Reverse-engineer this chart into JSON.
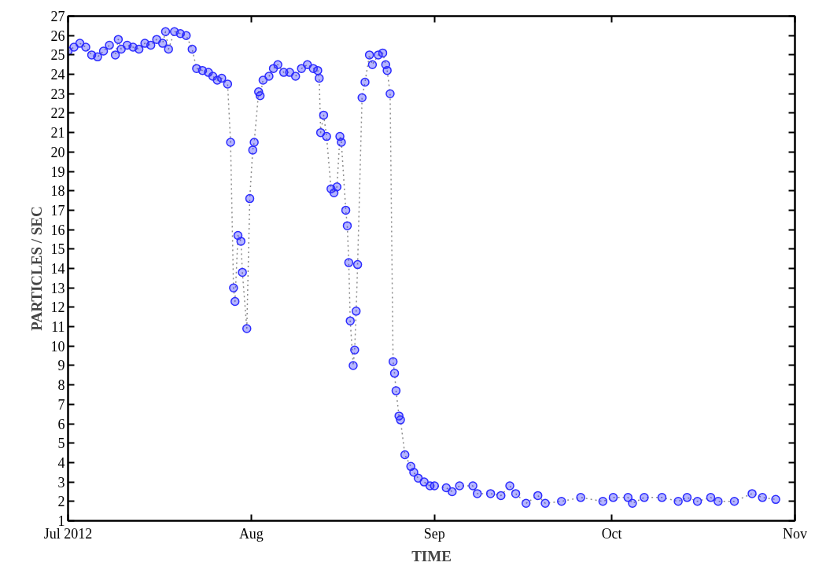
{
  "chart_data": {
    "type": "line",
    "xlabel": "TIME",
    "ylabel": "PARTICLES / SEC",
    "xlim": [
      "2012-07-01",
      "2012-11-01"
    ],
    "xticks": [
      {
        "value": "2012-07-01",
        "label": "Jul 2012"
      },
      {
        "value": "2012-08-01",
        "label": "Aug"
      },
      {
        "value": "2012-09-01",
        "label": "Sep"
      },
      {
        "value": "2012-10-01",
        "label": "Oct"
      },
      {
        "value": "2012-11-01",
        "label": "Nov"
      }
    ],
    "ylim": [
      1,
      27
    ],
    "yticks": [
      1,
      2,
      3,
      4,
      5,
      6,
      7,
      8,
      9,
      10,
      11,
      12,
      13,
      14,
      15,
      16,
      17,
      18,
      19,
      20,
      21,
      22,
      23,
      24,
      25,
      26,
      27
    ],
    "grid": false,
    "marker": "circle",
    "line_style": "dotted",
    "series": [
      {
        "color": "#2b2bff",
        "x": [
          "2012-07-01T00:00",
          "2012-07-02T00:00",
          "2012-07-03T00:00",
          "2012-07-04T00:00",
          "2012-07-05T00:00",
          "2012-07-06T00:00",
          "2012-07-07T00:00",
          "2012-07-08T00:00",
          "2012-07-09T00:00",
          "2012-07-09T12:00",
          "2012-07-10T00:00",
          "2012-07-11T00:00",
          "2012-07-12T00:00",
          "2012-07-13T00:00",
          "2012-07-14T00:00",
          "2012-07-15T00:00",
          "2012-07-16T00:00",
          "2012-07-17T00:00",
          "2012-07-17T12:00",
          "2012-07-18T00:00",
          "2012-07-19T00:00",
          "2012-07-20T00:00",
          "2012-07-21T00:00",
          "2012-07-22T00:00",
          "2012-07-22T18:00",
          "2012-07-23T18:00",
          "2012-07-24T18:00",
          "2012-07-25T12:00",
          "2012-07-26T06:00",
          "2012-07-27T00:00",
          "2012-07-28T00:00",
          "2012-07-28T12:00",
          "2012-07-29T00:00",
          "2012-07-29T06:00",
          "2012-07-29T18:00",
          "2012-07-30T06:00",
          "2012-07-30T12:00",
          "2012-07-31T06:00",
          "2012-07-31T18:00",
          "2012-08-01T06:00",
          "2012-08-01T12:00",
          "2012-08-02T06:00",
          "2012-08-02T12:00",
          "2012-08-03T00:00",
          "2012-08-04T00:00",
          "2012-08-04T18:00",
          "2012-08-05T12:00",
          "2012-08-06T12:00",
          "2012-08-07T12:00",
          "2012-08-08T12:00",
          "2012-08-09T12:00",
          "2012-08-10T12:00",
          "2012-08-11T12:00",
          "2012-08-12T06:00",
          "2012-08-12T12:00",
          "2012-08-12T18:00",
          "2012-08-13T06:00",
          "2012-08-13T18:00",
          "2012-08-14T12:00",
          "2012-08-15T00:00",
          "2012-08-15T12:00",
          "2012-08-16T00:00",
          "2012-08-16T06:00",
          "2012-08-17T00:00",
          "2012-08-17T06:00",
          "2012-08-17T12:00",
          "2012-08-17T18:00",
          "2012-08-18T06:00",
          "2012-08-18T12:00",
          "2012-08-18T18:00",
          "2012-08-19T00:00",
          "2012-08-19T18:00",
          "2012-08-20T06:00",
          "2012-08-21T00:00",
          "2012-08-21T12:00",
          "2012-08-22T12:00",
          "2012-08-23T06:00",
          "2012-08-23T18:00",
          "2012-08-24T00:00",
          "2012-08-24T12:00",
          "2012-08-25T00:00",
          "2012-08-25T06:00",
          "2012-08-25T12:00",
          "2012-08-26T00:00",
          "2012-08-26T06:00",
          "2012-08-27T00:00",
          "2012-08-28T00:00",
          "2012-08-28T12:00",
          "2012-08-29T06:00",
          "2012-08-30T06:00",
          "2012-08-31T06:00",
          "2012-09-01T00:00",
          "2012-09-03T00:00",
          "2012-09-04T00:00",
          "2012-09-05T06:00",
          "2012-09-07T12:00",
          "2012-09-08T06:00",
          "2012-09-10T12:00",
          "2012-09-12T06:00",
          "2012-09-13T18:00",
          "2012-09-14T18:00",
          "2012-09-16T12:00",
          "2012-09-18T12:00",
          "2012-09-19T18:00",
          "2012-09-22T12:00",
          "2012-09-25T18:00",
          "2012-09-29T12:00",
          "2012-10-01T06:00",
          "2012-10-03T18:00",
          "2012-10-04T12:00",
          "2012-10-06T12:00",
          "2012-10-09T12:00",
          "2012-10-12T06:00",
          "2012-10-13T18:00",
          "2012-10-15T12:00",
          "2012-10-17T18:00",
          "2012-10-19T00:00",
          "2012-10-21T18:00",
          "2012-10-24T18:00",
          "2012-10-26T12:00",
          "2012-10-28T18:00"
        ],
        "values": [
          25.2,
          25.4,
          25.6,
          25.4,
          25.0,
          24.9,
          25.2,
          25.5,
          25.0,
          25.8,
          25.3,
          25.5,
          25.4,
          25.3,
          25.6,
          25.5,
          25.8,
          25.6,
          26.2,
          25.3,
          26.2,
          26.1,
          26.0,
          25.3,
          24.3,
          24.2,
          24.1,
          23.9,
          23.7,
          23.8,
          23.5,
          20.5,
          13.0,
          12.3,
          15.7,
          15.4,
          13.8,
          10.9,
          17.6,
          20.1,
          20.5,
          23.1,
          22.9,
          23.7,
          23.9,
          24.3,
          24.5,
          24.1,
          24.1,
          23.9,
          24.3,
          24.5,
          24.3,
          24.2,
          23.8,
          21.0,
          21.9,
          20.8,
          18.1,
          17.9,
          18.2,
          20.8,
          20.5,
          17.0,
          16.2,
          14.3,
          11.3,
          9.0,
          9.8,
          11.8,
          14.2,
          22.8,
          23.6,
          25.0,
          24.5,
          25.0,
          25.1,
          24.5,
          24.2,
          23.0,
          9.2,
          8.6,
          7.7,
          6.4,
          6.2,
          4.4,
          3.8,
          3.5,
          3.2,
          3.0,
          2.8,
          2.8,
          2.7,
          2.5,
          2.8,
          2.8,
          2.4,
          2.4,
          2.3,
          2.8,
          2.4,
          1.9,
          2.3,
          1.9,
          2.0,
          2.2,
          2.0,
          2.2,
          2.2,
          1.9,
          2.2,
          2.2,
          2.0,
          2.2,
          2.0,
          2.2,
          2.0,
          2.0,
          2.4,
          2.2,
          2.1
        ]
      }
    ]
  }
}
